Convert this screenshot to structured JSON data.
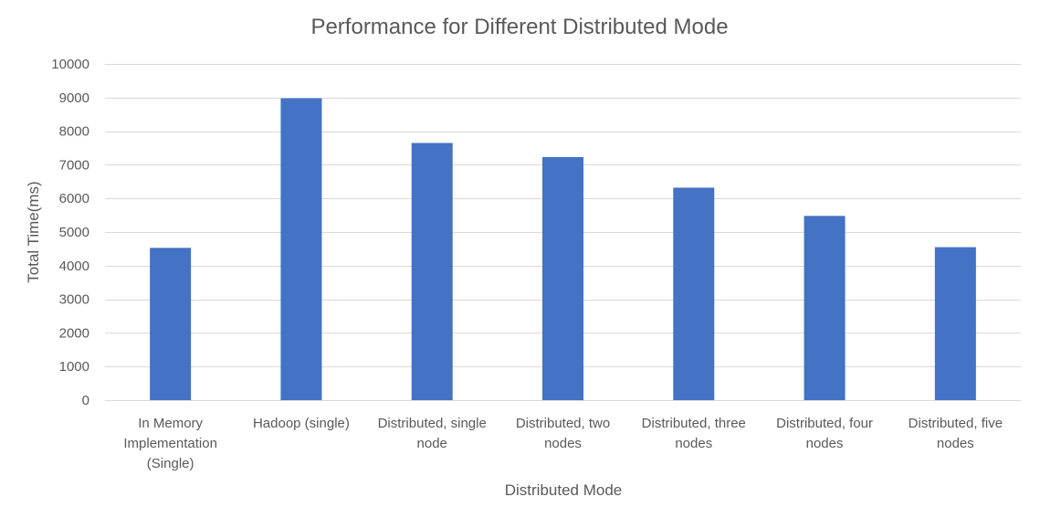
{
  "chart_data": {
    "type": "bar",
    "title": "Performance for Different Distributed Mode",
    "xlabel": "Distributed Mode",
    "ylabel": "Total Time(ms)",
    "ylim": [
      0,
      10000
    ],
    "yticks": [
      0,
      1000,
      2000,
      3000,
      4000,
      5000,
      6000,
      7000,
      8000,
      9000,
      10000
    ],
    "grid": true,
    "legend": "none",
    "categories": [
      [
        "In Memory",
        "Implementation",
        "(Single)"
      ],
      [
        "Hadoop (single)"
      ],
      [
        "Distributed, single",
        "node"
      ],
      [
        "Distributed, two",
        "nodes"
      ],
      [
        "Distributed, three",
        "nodes"
      ],
      [
        "Distributed, four",
        "nodes"
      ],
      [
        "Distributed, five",
        "nodes"
      ]
    ],
    "values": [
      4530,
      8980,
      7650,
      7230,
      6320,
      5480,
      4550
    ],
    "colors": {
      "bar": "#4472c4",
      "grid": "#d9d9d9",
      "text": "#595959"
    }
  }
}
